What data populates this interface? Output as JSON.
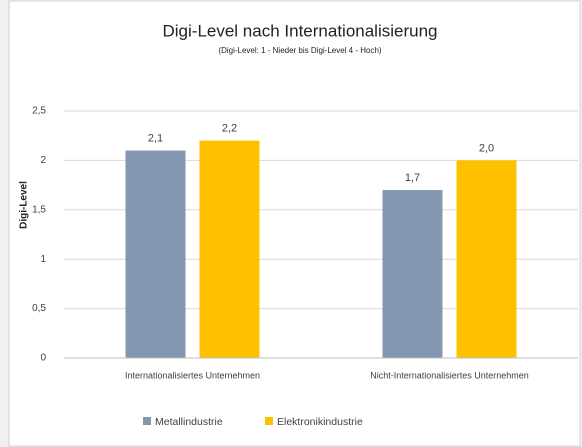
{
  "chart_data": {
    "type": "bar",
    "title": "Digi-Level nach Internationalisierung",
    "subtitle": "(Digi-Level:  1 - Nieder bis Digi-Level 4 - Hoch)",
    "y_label": "Digi-Level",
    "categories": [
      "Internationalisiertes Unternehmen",
      "Nicht-Internationalisiertes Unternehmen"
    ],
    "series": [
      {
        "name": "Metallindustrie",
        "color": "#8497b0",
        "values": [
          2.1,
          1.7
        ],
        "value_labels": [
          "2,1",
          "1,7"
        ]
      },
      {
        "name": "Elektronikindustrie",
        "color": "#ffc000",
        "values": [
          2.2,
          2.0
        ],
        "value_labels": [
          "2,2",
          "2,0"
        ]
      }
    ],
    "ylim": [
      0,
      2.5
    ],
    "yticks": [
      0,
      {
        "value": 0.5,
        "label": "0,5"
      },
      1,
      {
        "value": 1.5,
        "label": "1,5"
      },
      2,
      {
        "value": 2.5,
        "label": "2,5"
      }
    ],
    "grid": true,
    "legend": "bottom"
  }
}
